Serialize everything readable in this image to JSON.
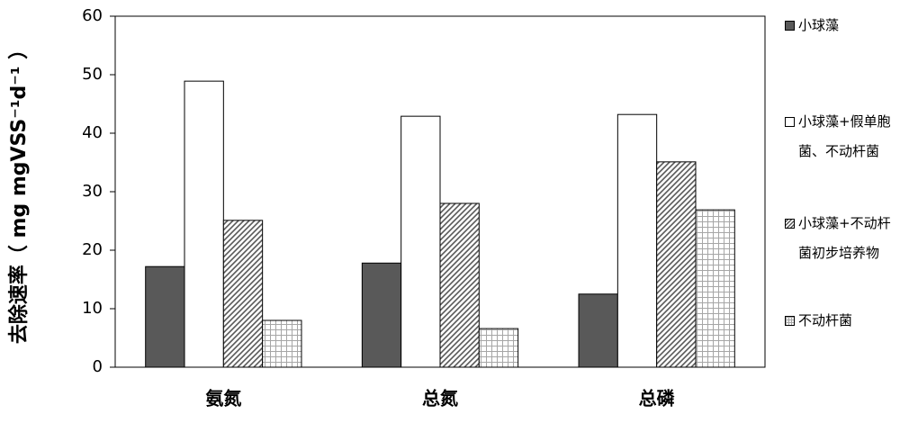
{
  "chart_data": {
    "type": "bar",
    "y_label": "去除速率（ mg mgVSS⁻¹d⁻¹ ）",
    "categories": [
      "氨氮",
      "总氮",
      "总磷"
    ],
    "series": [
      {
        "name": "小球藻",
        "color": "#595959",
        "values": [
          17.2,
          17.8,
          12.5
        ]
      },
      {
        "name": "小球藻+假单胞菌、不动杆菌",
        "color": "#ffffff",
        "values": [
          48.9,
          42.9,
          43.2
        ]
      },
      {
        "name": "小球藻+不动杆菌初步培养物",
        "color": "#595959",
        "pattern": "diagonal",
        "values": [
          25.1,
          28,
          35.1
        ]
      },
      {
        "name": "不动杆菌",
        "color": "#a6a6a6",
        "pattern": "grid",
        "values": [
          8,
          6.6,
          26.9
        ]
      }
    ],
    "ylim": [
      0,
      60
    ],
    "yticks": [
      0,
      10,
      20,
      30,
      40,
      50,
      60
    ],
    "grid": false
  }
}
